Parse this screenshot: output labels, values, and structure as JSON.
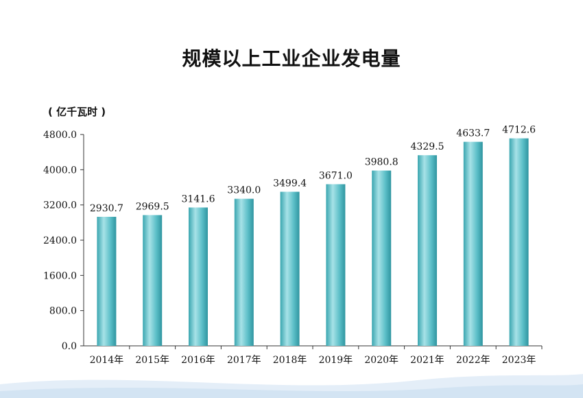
{
  "page": {
    "title": "规模以上工业企业发电量",
    "unit_label": "( 亿千瓦时 )"
  },
  "colors": {
    "bar_top": "#9fdde3",
    "bar_mid": "#4fb7c0",
    "bar_edge": "#2f95a0",
    "axis": "#333333",
    "footer": "#dbe9f5"
  },
  "chart_data": {
    "type": "bar",
    "title": "规模以上工业企业发电量",
    "ylabel": "( 亿千瓦时 )",
    "xlabel": "",
    "ylim": [
      0,
      4800
    ],
    "yticks": [
      "0.0",
      "800.0",
      "1600.0",
      "2400.0",
      "3200.0",
      "4000.0",
      "4800.0"
    ],
    "ytick_values": [
      0,
      800,
      1600,
      2400,
      3200,
      4000,
      4800
    ],
    "categories": [
      "2014年",
      "2015年",
      "2016年",
      "2017年",
      "2018年",
      "2019年",
      "2020年",
      "2021年",
      "2022年",
      "2023年"
    ],
    "values": [
      2930.7,
      2969.5,
      3141.6,
      3340.0,
      3499.4,
      3671.0,
      3980.8,
      4329.5,
      4633.7,
      4712.6
    ],
    "value_labels": [
      "2930.7",
      "2969.5",
      "3141.6",
      "3340.0",
      "3499.4",
      "3671.0",
      "3980.8",
      "4329.5",
      "4633.7",
      "4712.6"
    ],
    "grid": false,
    "legend": "none"
  }
}
